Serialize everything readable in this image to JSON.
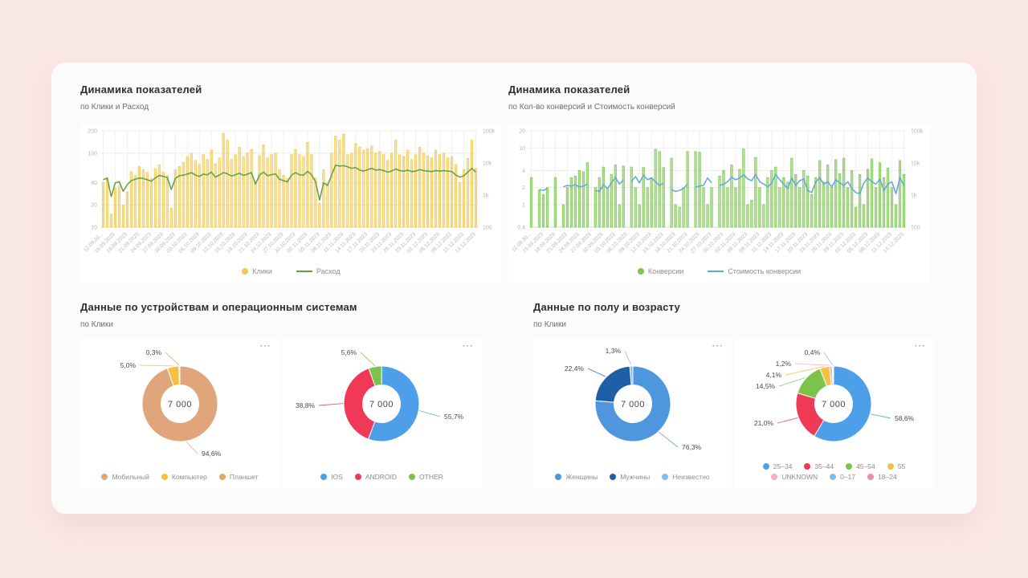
{
  "theme": {
    "page_bg": "#FBE9E6",
    "card_bg": "#FCFBFB",
    "panel_bg": "#FFFFFF",
    "accent_yellow": "#F2C94C",
    "accent_green_line": "#5FA13D",
    "accent_green_bar": "#7CC64F",
    "accent_blue_line": "#5FA8DB"
  },
  "ui": {
    "panel_menu_icon": "⋯"
  },
  "sections": [
    {
      "title": "Динамика показателей",
      "subtitle": "по Клики и Расход"
    },
    {
      "title": "Динамика показателей",
      "subtitle": "по Кол-во конверсий и Стоимость конверсий"
    },
    {
      "title": "Данные по устройствам и операционным системам",
      "subtitle": "по Клики"
    },
    {
      "title": "Данные по полу и возрасту",
      "subtitle": "по Клики"
    }
  ],
  "chart_data": [
    {
      "id": "clicks_spend",
      "type": "bar",
      "combo": "bar+line",
      "grid": true,
      "legend_position": "bottom",
      "x_tick_labels": [
        "12.09.20...",
        "15.09.2023",
        "18.09.2023",
        "21.09.2023",
        "24.09.2023",
        "27.09.2023",
        "30.09.2023",
        "03.10.2023",
        "06.10.2023",
        "09.10.2023",
        "12.10.2023",
        "15.10.2023",
        "18.10.2023",
        "21.10.2023",
        "24.10.2023",
        "27.10.2023",
        "30.10.2023",
        "02.11.2023",
        "05.11.2023",
        "08.11.2023",
        "11.11.2023",
        "14.11.2023",
        "17.11.2023",
        "20.11.2023",
        "23.11.2023",
        "26.11.2023",
        "29.11.2023",
        "02.12.2023",
        "05.12.2023",
        "08.12.2023",
        "11.12.2023",
        "14.12.2023"
      ],
      "left_axis": {
        "scale": "log",
        "min": 10,
        "max": 200,
        "ticks": [
          {
            "v": 200,
            "label": "200"
          },
          {
            "v": 100,
            "label": "100"
          },
          {
            "v": 40,
            "label": "40"
          },
          {
            "v": 20,
            "label": "20"
          },
          {
            "v": 10,
            "label": "10"
          }
        ]
      },
      "right_axis": {
        "scale": "log",
        "min": 100,
        "max": 100000,
        "ticks": [
          {
            "v": 100000,
            "label": "100k"
          },
          {
            "v": 10000,
            "label": "10k"
          },
          {
            "v": 1000,
            "label": "1k"
          },
          {
            "v": 100,
            "label": "100"
          }
        ]
      },
      "series": [
        {
          "name": "Клики",
          "kind": "bar",
          "axis": "left",
          "color": "#F2C94C",
          "values": [
            40,
            45,
            15,
            34,
            36,
            20,
            30,
            56,
            50,
            66,
            60,
            55,
            45,
            62,
            70,
            55,
            50,
            18,
            60,
            66,
            75,
            90,
            100,
            80,
            70,
            95,
            82,
            110,
            72,
            86,
            185,
            150,
            82,
            95,
            120,
            90,
            100,
            112,
            40,
            92,
            130,
            86,
            95,
            100,
            60,
            50,
            46,
            95,
            112,
            95,
            90,
            140,
            96,
            46,
            21,
            60,
            40,
            100,
            170,
            150,
            180,
            95,
            100,
            135,
            120,
            110,
            115,
            125,
            100,
            105,
            95,
            80,
            100,
            150,
            95,
            90,
            110,
            82,
            95,
            120,
            100,
            92,
            86,
            110,
            95,
            100,
            86,
            90,
            70,
            40,
            60,
            85,
            150,
            62
          ]
        },
        {
          "name": "Расход",
          "kind": "line",
          "axis": "right",
          "color": "#5FA13D",
          "values": [
            3000,
            3400,
            900,
            2400,
            2600,
            1300,
            2100,
            2800,
            3100,
            3400,
            3300,
            3000,
            2700,
            3400,
            4100,
            3800,
            3500,
            1500,
            3300,
            4000,
            4200,
            4500,
            5000,
            4200,
            3800,
            4500,
            4300,
            5200,
            3600,
            4200,
            5000,
            4600,
            3900,
            4300,
            4800,
            4100,
            4500,
            5000,
            2200,
            4200,
            5200,
            4000,
            4300,
            4600,
            3100,
            2800,
            2600,
            4200,
            5000,
            4300,
            4200,
            5500,
            4300,
            2600,
            700,
            2400,
            2000,
            4200,
            8500,
            8000,
            8200,
            7600,
            6800,
            7200,
            6000,
            5600,
            6200,
            6800,
            6000,
            6200,
            5800,
            5200,
            5600,
            6500,
            5800,
            5600,
            6000,
            5400,
            5600,
            6200,
            5800,
            5600,
            5400,
            5800,
            5600,
            5800,
            5600,
            5400,
            4200,
            3600,
            4000,
            5200,
            6800,
            5200
          ]
        }
      ]
    },
    {
      "id": "conversions_cost",
      "type": "bar",
      "combo": "bar+line",
      "grid": true,
      "legend_position": "bottom",
      "x_tick_labels": [
        "12.09.20...",
        "15.09.2023",
        "18.09.2023",
        "21.09.2023",
        "24.09.2023",
        "27.09.2023",
        "30.09.2023",
        "03.10.2023",
        "06.10.2023",
        "09.10.2023",
        "12.10.2023",
        "15.10.2023",
        "18.10.2023",
        "21.10.2023",
        "24.10.2023",
        "27.10.2023",
        "30.10.2023",
        "02.11.2023",
        "05.11.2023",
        "08.11.2023",
        "11.11.2023",
        "14.11.2023",
        "17.11.2023",
        "20.11.2023",
        "23.11.2023",
        "26.11.2023",
        "29.11.2023",
        "02.12.2023",
        "05.12.2023",
        "08.12.2023",
        "11.12.2023",
        "14.12.2023"
      ],
      "left_axis": {
        "scale": "log",
        "min": 0.4,
        "max": 20,
        "ticks": [
          {
            "v": 20,
            "label": "20"
          },
          {
            "v": 10,
            "label": "10"
          },
          {
            "v": 4,
            "label": "4"
          },
          {
            "v": 2,
            "label": "2"
          },
          {
            "v": 1,
            "label": "1"
          },
          {
            "v": 0.4,
            "label": "0,4"
          }
        ]
      },
      "right_axis": {
        "scale": "log",
        "min": 100,
        "max": 100000,
        "ticks": [
          {
            "v": 100000,
            "label": "100k"
          },
          {
            "v": 10000,
            "label": "10k"
          },
          {
            "v": 1000,
            "label": "1k"
          },
          {
            "v": 100,
            "label": "100"
          }
        ]
      },
      "series": [
        {
          "name": "Конверсии",
          "kind": "bar",
          "axis": "left",
          "color": "#7CC64F",
          "values": [
            3,
            null,
            1.8,
            1.5,
            2,
            null,
            3,
            null,
            1,
            2,
            3,
            3.2,
            4,
            3.8,
            5.5,
            null,
            2,
            3,
            4.6,
            2,
            3.4,
            5,
            1,
            4.8,
            null,
            4.6,
            2,
            1,
            4.5,
            2,
            3,
            9.5,
            8.6,
            4.5,
            null,
            6.6,
            1,
            0.9,
            2,
            8.6,
            null,
            8.6,
            8.4,
            2,
            1,
            2,
            null,
            3.2,
            4,
            2,
            5,
            2,
            4.2,
            9.6,
            1,
            1.2,
            6.8,
            2,
            1,
            3,
            4,
            4.6,
            2,
            3,
            2.5,
            6.6,
            3.4,
            2,
            4,
            3.2,
            1.5,
            3,
            6,
            2.5,
            5,
            2,
            6.2,
            3.5,
            6.6,
            2,
            4,
            0.9,
            3.4,
            1,
            4.2,
            6.4,
            2,
            5.5,
            3,
            4.4,
            2,
            1,
            6,
            3.4
          ]
        },
        {
          "name": "Стоимость конверсии",
          "kind": "line",
          "axis": "right",
          "color": "#5FA8DB",
          "values": [
            1800,
            null,
            1500,
            1400,
            1600,
            null,
            2000,
            null,
            1800,
            2000,
            1900,
            2100,
            1800,
            1900,
            2200,
            null,
            1400,
            1300,
            2100,
            1600,
            2400,
            3500,
            2200,
            3000,
            null,
            2600,
            3800,
            2400,
            4200,
            3000,
            3400,
            2600,
            2000,
            2400,
            null,
            1500,
            1300,
            1400,
            1600,
            2200,
            null,
            1800,
            1900,
            2000,
            3400,
            2400,
            null,
            2000,
            2200,
            2600,
            3600,
            3000,
            3400,
            4300,
            3200,
            2800,
            4400,
            2600,
            2200,
            1800,
            2400,
            4400,
            3000,
            2200,
            1600,
            3400,
            2000,
            2800,
            3200,
            1400,
            1200,
            2600,
            3400,
            2200,
            2600,
            1800,
            3000,
            2400,
            2000,
            2600,
            1600,
            1200,
            1100,
            2400,
            3400,
            2600,
            2200,
            3100,
            1400,
            2200,
            2600,
            1100,
            3400,
            2000
          ]
        }
      ]
    },
    {
      "id": "devices_donut",
      "type": "pie",
      "center_label": "7 000",
      "slices": [
        {
          "label": "Мобильный",
          "value_pct": 94.6,
          "callout": "94,6%",
          "color": "#E0A57A"
        },
        {
          "label": "Компьютер",
          "value_pct": 5.0,
          "callout": "5,0%",
          "color": "#F6C043"
        },
        {
          "label": "Планшет",
          "value_pct": 0.3,
          "callout": "0,3%",
          "color": "#E8A763"
        }
      ]
    },
    {
      "id": "os_donut",
      "type": "pie",
      "center_label": "7 000",
      "slices": [
        {
          "label": "IOS",
          "value_pct": 55.7,
          "callout": "55,7%",
          "color": "#4C9FE8"
        },
        {
          "label": "ANDROID",
          "value_pct": 38.8,
          "callout": "38,8%",
          "color": "#F03857"
        },
        {
          "label": "OTHER",
          "value_pct": 5.6,
          "callout": "5,6%",
          "color": "#7CC34C"
        }
      ]
    },
    {
      "id": "gender_donut",
      "type": "pie",
      "center_label": "7 000",
      "slices": [
        {
          "label": "Женщины",
          "value_pct": 76.3,
          "callout": "76,3%",
          "color": "#4E96DD"
        },
        {
          "label": "Мужчины",
          "value_pct": 22.4,
          "callout": "22,4%",
          "color": "#1E5FA8"
        },
        {
          "label": "Неизвестно",
          "value_pct": 1.3,
          "callout": "1,3%",
          "color": "#85BCE8"
        }
      ]
    },
    {
      "id": "age_donut",
      "type": "pie",
      "center_label": "7 000",
      "slices": [
        {
          "label": "25–34",
          "value_pct": 58.6,
          "callout": "58,6%",
          "color": "#4C9FE8"
        },
        {
          "label": "35–44",
          "value_pct": 21.0,
          "callout": "21,0%",
          "color": "#F03857"
        },
        {
          "label": "45–54",
          "value_pct": 14.5,
          "callout": "14,5%",
          "color": "#7CC34C"
        },
        {
          "label": "55",
          "value_pct": 4.1,
          "callout": "4,1%",
          "color": "#F6C043"
        },
        {
          "label": "UNKNOWN",
          "value_pct": 1.2,
          "callout": "1,2%",
          "color": "#F6AECB"
        },
        {
          "label": "0–17",
          "value_pct": 0.4,
          "callout": "0,4%",
          "color": "#85BCE8"
        },
        {
          "label": "18–24",
          "value_pct": 0.2,
          "callout": null,
          "color": "#F08CA4"
        }
      ]
    }
  ]
}
